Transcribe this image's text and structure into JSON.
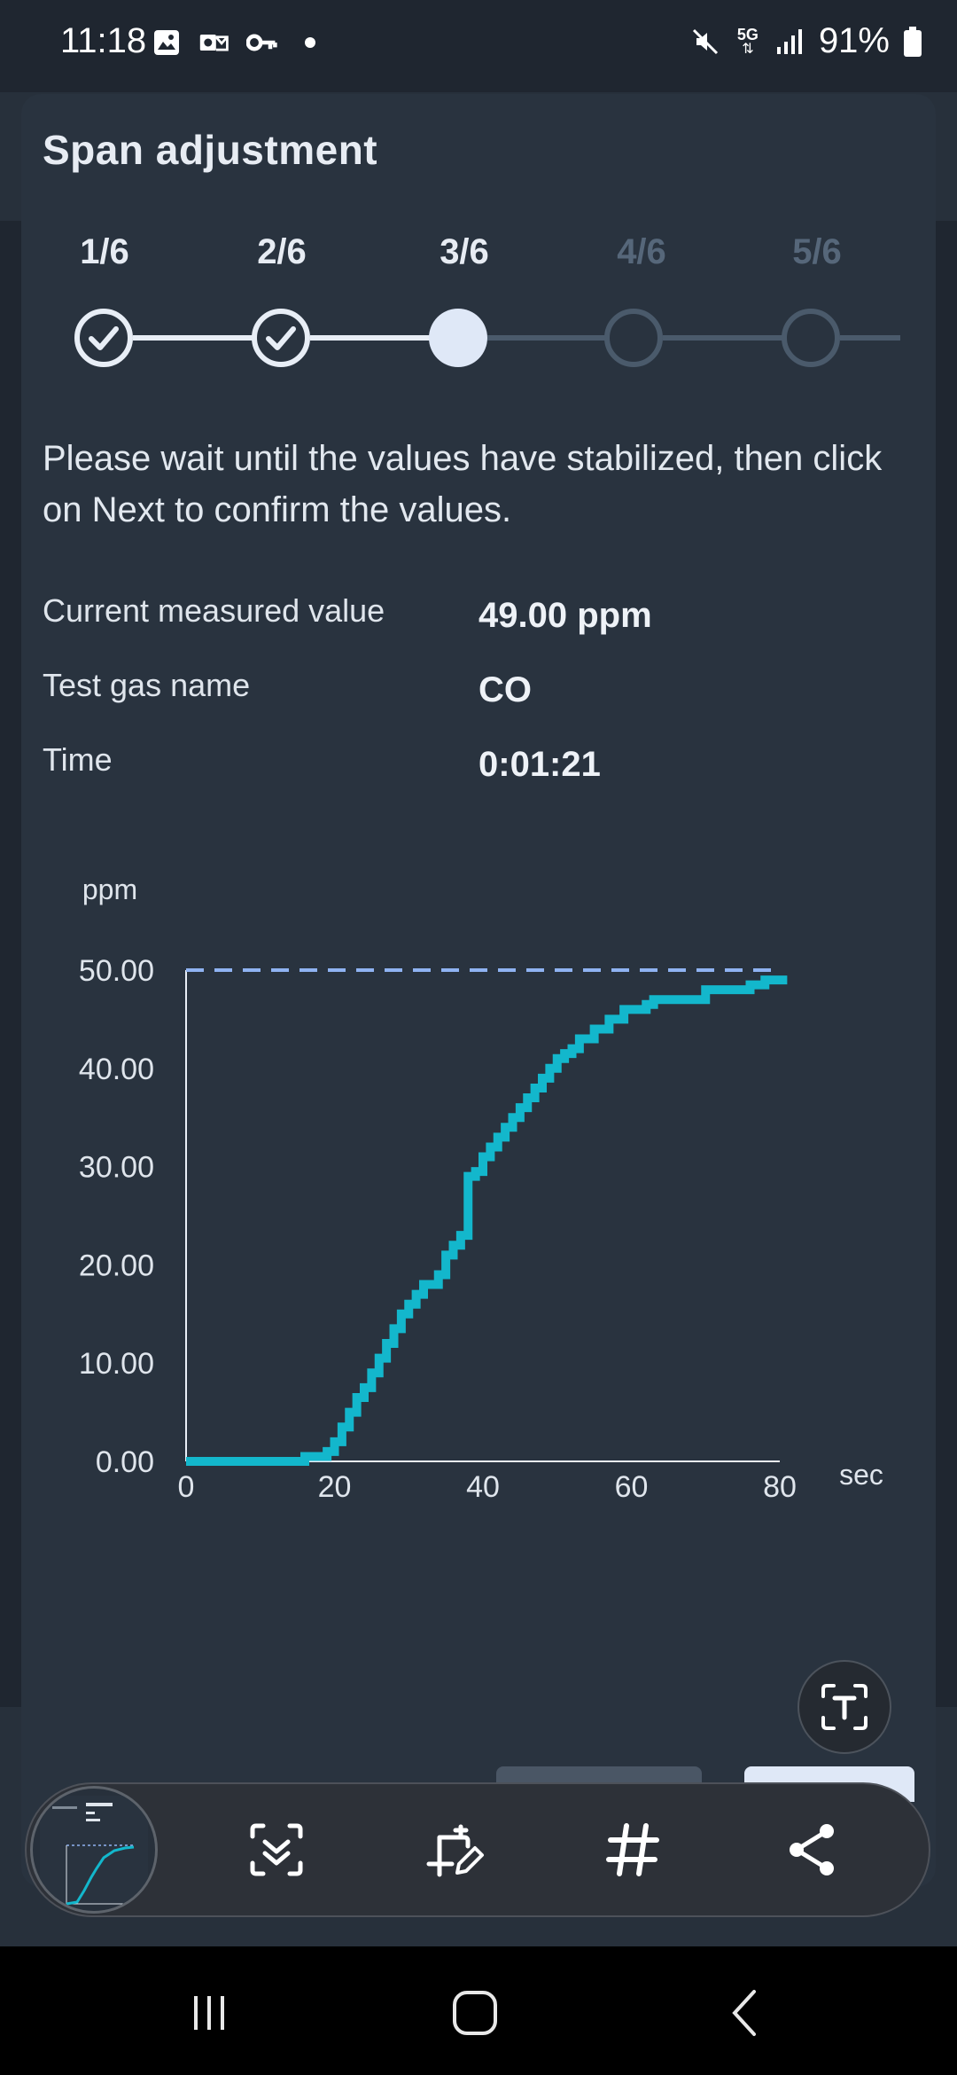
{
  "status_bar": {
    "time": "11:18",
    "battery": "91%",
    "network": "5G",
    "left_icons": [
      "gallery-icon",
      "outlook-icon",
      "vpn-key-icon",
      "dot-icon"
    ],
    "right_icons": [
      "mute-icon",
      "5g-icon",
      "signal-icon",
      "battery-icon"
    ]
  },
  "page": {
    "title": "Span adjustment",
    "steps": [
      {
        "label": "1/6",
        "state": "done"
      },
      {
        "label": "2/6",
        "state": "done"
      },
      {
        "label": "3/6",
        "state": "current"
      },
      {
        "label": "4/6",
        "state": "pending"
      },
      {
        "label": "5/6",
        "state": "pending"
      }
    ],
    "instruction": "Please wait until the values have stabilized, then click on Next to confirm the values.",
    "info": [
      {
        "label": "Current measured value",
        "value": "49.00 ppm"
      },
      {
        "label": "Test gas name",
        "value": "CO"
      },
      {
        "label": "Time",
        "value": "0:01:21"
      }
    ]
  },
  "chart_data": {
    "type": "line",
    "ylabel": "ppm",
    "xlabel": "sec",
    "xlim": [
      0,
      80
    ],
    "ylim": [
      0,
      50
    ],
    "x_ticks": [
      "0",
      "20",
      "40",
      "60",
      "80"
    ],
    "y_ticks": [
      "0.00",
      "10.00",
      "20.00",
      "30.00",
      "40.00",
      "50.00"
    ],
    "target_line": 50,
    "target_line_color": "#8fb3f2",
    "series_color": "#13b7cc",
    "series": [
      {
        "x": [
          0,
          15,
          16,
          17,
          18,
          19,
          20,
          21,
          22,
          23,
          24,
          25,
          26,
          27,
          28,
          29,
          30,
          31,
          32,
          33,
          34,
          35,
          36,
          37,
          38,
          39,
          40,
          41,
          42,
          43,
          44,
          45,
          46,
          47,
          48,
          49,
          50,
          51,
          52,
          53,
          54,
          55,
          56,
          57,
          58,
          59,
          60,
          61,
          62,
          63,
          64,
          65,
          66,
          67,
          68,
          69,
          70,
          71,
          72,
          73,
          74,
          75,
          76,
          77,
          78,
          79,
          80,
          81
        ],
        "y": [
          0,
          0,
          0.5,
          0.5,
          0.5,
          1,
          2,
          3.5,
          5,
          6.5,
          7.5,
          9,
          10.5,
          12,
          13.5,
          15,
          16,
          17,
          18,
          18,
          19,
          21,
          22,
          23,
          29,
          29.5,
          31,
          32,
          33,
          34,
          35,
          36,
          37,
          38,
          39,
          40,
          41,
          41.5,
          42,
          43,
          43,
          44,
          44,
          45,
          45,
          46,
          46,
          46,
          46.5,
          47,
          47,
          47,
          47,
          47,
          47,
          47,
          48,
          48,
          48,
          48,
          48,
          48,
          48.5,
          48.5,
          49,
          49,
          49,
          49
        ]
      }
    ]
  },
  "toolbar": {
    "items": [
      "scroll-capture-icon",
      "crop-edit-icon",
      "hashtag-icon",
      "share-icon"
    ]
  },
  "navbar": {
    "items": [
      "recents-icon",
      "home-icon",
      "back-icon"
    ]
  }
}
